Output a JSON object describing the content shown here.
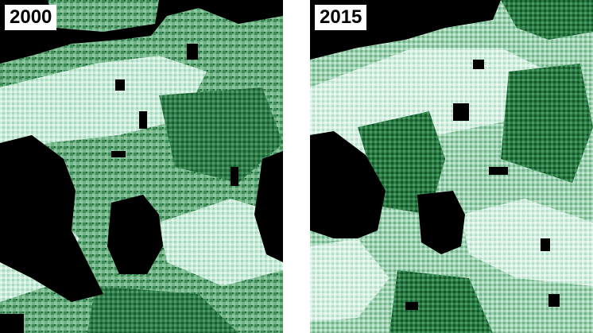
{
  "panels": [
    {
      "label": "2000"
    },
    {
      "label": "2015"
    }
  ],
  "palette": {
    "water": "#000000",
    "pale": "#d9f2e6",
    "light": "#a8d8bd",
    "mid": "#5fa87a",
    "dark": "#1f6b38",
    "deep": "#0f4d24"
  }
}
